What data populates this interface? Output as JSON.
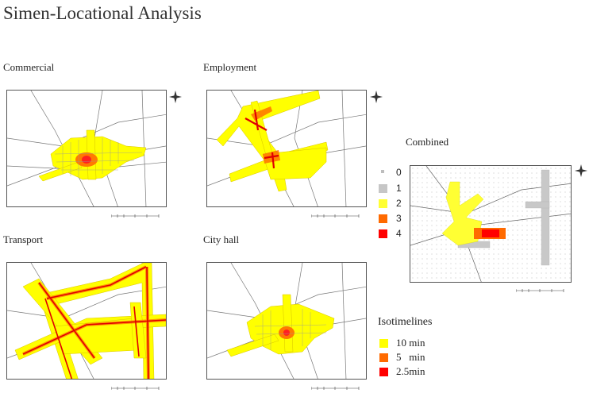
{
  "title": "Simen-Locational Analysis",
  "panels": {
    "commercial": "Commercial",
    "employment": "Employment",
    "transport": "Transport",
    "cityhall": "City hall",
    "combined": "Combined"
  },
  "combined_legend": {
    "items": [
      {
        "label": "0",
        "color": "#bdbdbd"
      },
      {
        "label": "1",
        "color": "#c6c6c6"
      },
      {
        "label": "2",
        "color": "#ffff33"
      },
      {
        "label": "3",
        "color": "#ff6a00"
      },
      {
        "label": "4",
        "color": "#ff0000"
      }
    ]
  },
  "isotime_legend": {
    "title": "Isotimelines",
    "items": [
      {
        "label": "10 min",
        "color": "#ffff00"
      },
      {
        "label": "5   min",
        "color": "#ff6a00"
      },
      {
        "label": "2.5min",
        "color": "#ff0000"
      }
    ]
  },
  "colors": {
    "yellow": "#ffff00",
    "orange": "#ff6a00",
    "red": "#ff0000",
    "road": "#555555",
    "grey_cell": "#c8c8c8"
  }
}
